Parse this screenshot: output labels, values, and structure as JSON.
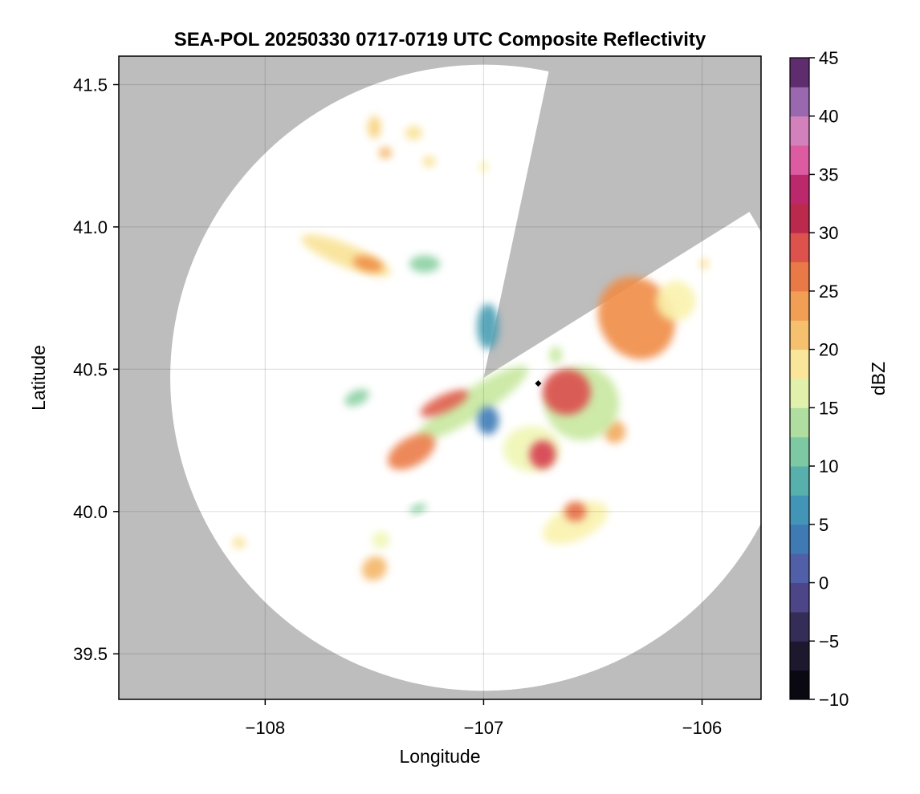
{
  "chart_data": {
    "type": "heatmap",
    "title": "SEA-POL 20250330 0717-0719 UTC Composite Reflectivity",
    "xlabel": "Longitude",
    "ylabel": "Latitude",
    "xlim": [
      -108.67,
      -105.73
    ],
    "ylim": [
      39.34,
      41.6
    ],
    "xticks": [
      -108,
      -107,
      -106
    ],
    "yticks": [
      39.5,
      40.0,
      40.5,
      41.0,
      41.5
    ],
    "xtick_labels": [
      "−108",
      "−107",
      "−106"
    ],
    "ytick_labels": [
      "39.5",
      "40.0",
      "40.5",
      "41.0",
      "41.5"
    ],
    "grid": true,
    "no_data_color": "#bdbdbd",
    "coverage_color": "#ffffff",
    "radar_site": {
      "lon": -107.0,
      "lat": 40.47
    },
    "radar_range_deg_lat": 1.1,
    "blocked_sector_deg": [
      12,
      58
    ],
    "marker": {
      "lon": -106.75,
      "lat": 40.45,
      "symbol": "diamond",
      "color": "#000000"
    },
    "colorbar": {
      "label": "dBZ",
      "min": -10,
      "max": 45,
      "step": 2.5,
      "ticks": [
        -10,
        -5,
        0,
        5,
        10,
        15,
        20,
        25,
        30,
        35,
        40,
        45
      ],
      "tick_labels": [
        "−10",
        "−5",
        "0",
        "5",
        "10",
        "15",
        "20",
        "25",
        "30",
        "35",
        "40",
        "45"
      ],
      "colormap": "spectral-like"
    },
    "echo_cells": [
      {
        "lon": -106.3,
        "lat": 40.68,
        "rx": 0.17,
        "ry": 0.15,
        "rot": -30,
        "dbz": 25
      },
      {
        "lon": -106.12,
        "lat": 40.74,
        "rx": 0.09,
        "ry": 0.07,
        "rot": 0,
        "dbz": 18
      },
      {
        "lon": -106.4,
        "lat": 40.28,
        "rx": 0.05,
        "ry": 0.04,
        "rot": 0,
        "dbz": 23
      },
      {
        "lon": -106.55,
        "lat": 40.38,
        "rx": 0.17,
        "ry": 0.13,
        "rot": -10,
        "dbz": 15
      },
      {
        "lon": -106.62,
        "lat": 40.42,
        "rx": 0.11,
        "ry": 0.08,
        "rot": 0,
        "dbz": 29
      },
      {
        "lon": -106.78,
        "lat": 40.22,
        "rx": 0.13,
        "ry": 0.08,
        "rot": 0,
        "dbz": 17
      },
      {
        "lon": -106.73,
        "lat": 40.2,
        "rx": 0.06,
        "ry": 0.05,
        "rot": 0,
        "dbz": 30
      },
      {
        "lon": -106.58,
        "lat": 39.96,
        "rx": 0.16,
        "ry": 0.06,
        "rot": -25,
        "dbz": 18
      },
      {
        "lon": -106.58,
        "lat": 40.0,
        "rx": 0.05,
        "ry": 0.035,
        "rot": 0,
        "dbz": 27
      },
      {
        "lon": -107.05,
        "lat": 40.38,
        "rx": 0.3,
        "ry": 0.05,
        "rot": -33,
        "dbz": 15
      },
      {
        "lon": -107.18,
        "lat": 40.38,
        "rx": 0.12,
        "ry": 0.03,
        "rot": -25,
        "dbz": 28
      },
      {
        "lon": -107.33,
        "lat": 40.21,
        "rx": 0.12,
        "ry": 0.05,
        "rot": -30,
        "dbz": 26
      },
      {
        "lon": -106.98,
        "lat": 40.32,
        "rx": 0.05,
        "ry": 0.05,
        "rot": 0,
        "dbz": 4
      },
      {
        "lon": -107.63,
        "lat": 40.9,
        "rx": 0.22,
        "ry": 0.04,
        "rot": 22,
        "dbz": 19
      },
      {
        "lon": -107.53,
        "lat": 40.87,
        "rx": 0.07,
        "ry": 0.025,
        "rot": 15,
        "dbz": 25
      },
      {
        "lon": -107.27,
        "lat": 40.87,
        "rx": 0.07,
        "ry": 0.03,
        "rot": 0,
        "dbz": 12
      },
      {
        "lon": -107.5,
        "lat": 41.35,
        "rx": 0.03,
        "ry": 0.04,
        "rot": 0,
        "dbz": 20
      },
      {
        "lon": -107.32,
        "lat": 41.33,
        "rx": 0.04,
        "ry": 0.025,
        "rot": 0,
        "dbz": 19
      },
      {
        "lon": -107.45,
        "lat": 41.26,
        "rx": 0.03,
        "ry": 0.02,
        "rot": 0,
        "dbz": 22
      },
      {
        "lon": -107.25,
        "lat": 41.23,
        "rx": 0.03,
        "ry": 0.02,
        "rot": 0,
        "dbz": 19
      },
      {
        "lon": -107.0,
        "lat": 41.21,
        "rx": 0.02,
        "ry": 0.02,
        "rot": 0,
        "dbz": 18
      },
      {
        "lon": -107.58,
        "lat": 40.4,
        "rx": 0.06,
        "ry": 0.025,
        "rot": -25,
        "dbz": 12
      },
      {
        "lon": -107.5,
        "lat": 39.8,
        "rx": 0.06,
        "ry": 0.04,
        "rot": -40,
        "dbz": 22
      },
      {
        "lon": -107.47,
        "lat": 39.9,
        "rx": 0.04,
        "ry": 0.03,
        "rot": 0,
        "dbz": 17
      },
      {
        "lon": -108.12,
        "lat": 39.89,
        "rx": 0.03,
        "ry": 0.02,
        "rot": 0,
        "dbz": 19
      },
      {
        "lon": -107.3,
        "lat": 40.01,
        "rx": 0.04,
        "ry": 0.015,
        "rot": -20,
        "dbz": 12
      },
      {
        "lon": -106.98,
        "lat": 40.65,
        "rx": 0.05,
        "ry": 0.08,
        "rot": 0,
        "dbz": 7
      },
      {
        "lon": -106.67,
        "lat": 40.55,
        "rx": 0.03,
        "ry": 0.03,
        "rot": 0,
        "dbz": 15
      },
      {
        "lon": -105.99,
        "lat": 40.87,
        "rx": 0.02,
        "ry": 0.02,
        "rot": 0,
        "dbz": 19
      }
    ]
  }
}
